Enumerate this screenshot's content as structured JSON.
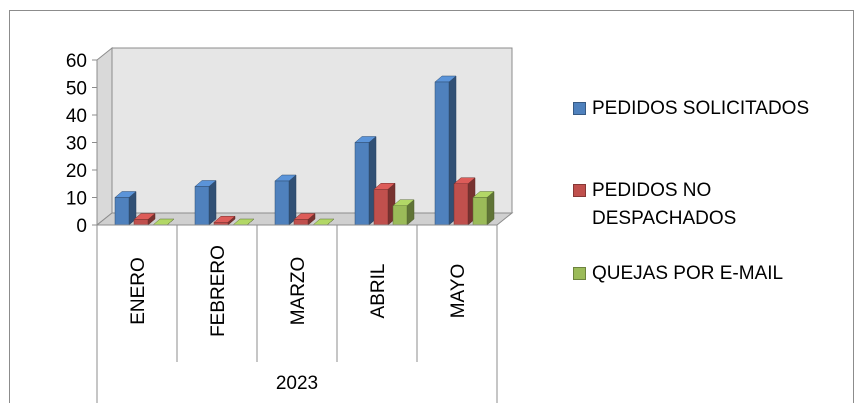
{
  "chart_data": {
    "type": "bar",
    "categories": [
      "ENERO",
      "FEBRERO",
      "MARZO",
      "ABRIL",
      "MAYO"
    ],
    "group_label": "2023",
    "series": [
      {
        "name": "PEDIDOS SOLICITADOS",
        "values": [
          10,
          14,
          16,
          30,
          52
        ],
        "color": "#4f81bd"
      },
      {
        "name": "PEDIDOS NO DESPACHADOS",
        "values": [
          2,
          1,
          2,
          13,
          15
        ],
        "color": "#c0504d"
      },
      {
        "name": "QUEJAS POR E-MAIL",
        "values": [
          0,
          0,
          0,
          7,
          10
        ],
        "color": "#9bbb59"
      }
    ],
    "yticks": [
      0,
      10,
      20,
      30,
      40,
      50,
      60
    ],
    "ylim": [
      0,
      60
    ],
    "grid": false,
    "legend_position": "right",
    "title": "",
    "xlabel": "",
    "ylabel": ""
  }
}
